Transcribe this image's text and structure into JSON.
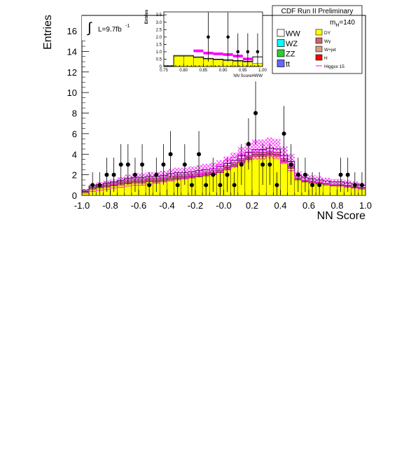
{
  "header": "CDF Run II Preliminary",
  "luminosity": "L=9.7fb",
  "luminosity_exp": "-1",
  "mass_label": "m",
  "mass_sub": "H",
  "mass_value": "=140",
  "legend_left": [
    "WW",
    "WZ",
    "ZZ",
    "tt"
  ],
  "legend_right": [
    "DY",
    "Wγ",
    "W+jet",
    "H",
    "Higgsx 15"
  ],
  "colors": {
    "WW": "#ffffff",
    "WZ": "#00ffff",
    "ZZ": "#33cc33",
    "tt": "#6666ff",
    "DY": "#ffff00",
    "Wg": "#cc6666",
    "Wjet": "#d2a080",
    "H": "#ff0000",
    "Higgsx15": "#ff00ff",
    "uncertainty": "#ff00ff",
    "data": "#000000"
  },
  "chart_data": [
    {
      "type": "bar",
      "role": "main",
      "xlabel": "NN Score",
      "ylabel": "Entries",
      "xlim": [
        -1.0,
        1.0
      ],
      "ylim": [
        0,
        17.5
      ],
      "x_ticks": [
        "-1.0",
        "-0.8",
        "-0.6",
        "-0.4",
        "-0.2",
        "-0.0",
        "0.2",
        "0.4",
        "0.6",
        "0.8",
        "1.0"
      ],
      "y_ticks": [
        "0",
        "2",
        "4",
        "6",
        "8",
        "10",
        "12",
        "14",
        "16"
      ],
      "bins": 40,
      "series": [
        {
          "name": "DY",
          "values": [
            0.3,
            0.6,
            0.7,
            0.8,
            0.9,
            1.0,
            1.1,
            1.2,
            1.2,
            1.3,
            1.3,
            1.4,
            1.5,
            1.6,
            1.6,
            1.7,
            1.8,
            1.9,
            2.0,
            2.2,
            2.5,
            2.8,
            3.2,
            3.5,
            3.8,
            3.8,
            3.9,
            3.8,
            3.2,
            2.6,
            1.5,
            1.3,
            1.2,
            1.1,
            1.0,
            0.9,
            0.9,
            0.8,
            0.7,
            0.6
          ]
        },
        {
          "name": "Wγ",
          "values": [
            0.05,
            0.1,
            0.15,
            0.15,
            0.15,
            0.2,
            0.2,
            0.2,
            0.2,
            0.2,
            0.2,
            0.2,
            0.2,
            0.2,
            0.2,
            0.2,
            0.2,
            0.2,
            0.2,
            0.2,
            0.2,
            0.2,
            0.2,
            0.2,
            0.2,
            0.2,
            0.2,
            0.2,
            0.2,
            0.2,
            0.1,
            0.1,
            0.1,
            0.1,
            0.1,
            0.1,
            0.1,
            0.1,
            0.1,
            0.1
          ]
        },
        {
          "name": "W+jet",
          "values": [
            0.05,
            0.1,
            0.1,
            0.15,
            0.15,
            0.15,
            0.2,
            0.2,
            0.2,
            0.2,
            0.2,
            0.2,
            0.2,
            0.2,
            0.2,
            0.2,
            0.2,
            0.2,
            0.2,
            0.2,
            0.2,
            0.2,
            0.2,
            0.2,
            0.2,
            0.2,
            0.2,
            0.2,
            0.2,
            0.2,
            0.1,
            0.1,
            0.1,
            0.1,
            0.1,
            0.1,
            0.1,
            0.1,
            0.1,
            0.1
          ]
        },
        {
          "name": "WW",
          "values": [
            0.1,
            0.1,
            0.1,
            0.1,
            0.1,
            0.1,
            0.15,
            0.15,
            0.15,
            0.15,
            0.15,
            0.15,
            0.2,
            0.2,
            0.2,
            0.2,
            0.2,
            0.2,
            0.2,
            0.2,
            0.2,
            0.2,
            0.25,
            0.25,
            0.25,
            0.25,
            0.3,
            0.3,
            0.3,
            0.3,
            0.2,
            0.2,
            0.2,
            0.2,
            0.2,
            0.2,
            0.2,
            0.2,
            0.2,
            0.2
          ]
        }
      ],
      "uncertainty_total": [
        0.5,
        0.9,
        1.05,
        1.2,
        1.3,
        1.45,
        1.65,
        1.75,
        1.75,
        1.85,
        1.85,
        1.95,
        2.1,
        2.2,
        2.2,
        2.3,
        2.4,
        2.5,
        2.6,
        2.8,
        3.1,
        3.4,
        3.85,
        4.15,
        4.45,
        4.45,
        4.6,
        4.5,
        3.9,
        3.3,
        1.9,
        1.7,
        1.6,
        1.5,
        1.4,
        1.3,
        1.3,
        1.2,
        1.1,
        1.0
      ],
      "uncertainty_frac": 0.22,
      "higgs_x15": [
        0.2,
        0.4,
        0.5,
        0.6,
        0.7,
        0.8,
        0.9,
        1.0,
        1.0,
        1.1,
        1.2,
        1.3,
        1.4,
        1.5,
        1.6,
        1.8,
        2.0,
        2.3,
        2.6,
        3.0,
        3.4,
        3.7,
        4.0,
        4.2,
        4.3,
        4.4,
        4.3,
        3.8,
        3.2,
        2.4,
        1.7,
        1.4,
        1.3,
        1.2,
        1.1,
        1.0,
        0.9,
        0.8,
        0.7,
        0.6
      ],
      "data_points": [
        {
          "x": -0.925,
          "y": 1
        },
        {
          "x": -0.875,
          "y": 1
        },
        {
          "x": -0.825,
          "y": 2
        },
        {
          "x": -0.775,
          "y": 2
        },
        {
          "x": -0.725,
          "y": 3
        },
        {
          "x": -0.675,
          "y": 3
        },
        {
          "x": -0.625,
          "y": 2
        },
        {
          "x": -0.575,
          "y": 3
        },
        {
          "x": -0.525,
          "y": 1
        },
        {
          "x": -0.475,
          "y": 2
        },
        {
          "x": -0.425,
          "y": 3
        },
        {
          "x": -0.375,
          "y": 4
        },
        {
          "x": -0.325,
          "y": 1
        },
        {
          "x": -0.275,
          "y": 3
        },
        {
          "x": -0.225,
          "y": 1
        },
        {
          "x": -0.175,
          "y": 4
        },
        {
          "x": -0.125,
          "y": 1
        },
        {
          "x": -0.075,
          "y": 2
        },
        {
          "x": -0.025,
          "y": 1
        },
        {
          "x": 0.025,
          "y": 2
        },
        {
          "x": 0.075,
          "y": 1
        },
        {
          "x": 0.125,
          "y": 3
        },
        {
          "x": 0.175,
          "y": 5
        },
        {
          "x": 0.225,
          "y": 8
        },
        {
          "x": 0.275,
          "y": 3
        },
        {
          "x": 0.325,
          "y": 3
        },
        {
          "x": 0.375,
          "y": 1
        },
        {
          "x": 0.425,
          "y": 6
        },
        {
          "x": 0.475,
          "y": 3
        },
        {
          "x": 0.525,
          "y": 2
        },
        {
          "x": 0.575,
          "y": 2
        },
        {
          "x": 0.625,
          "y": 1
        },
        {
          "x": 0.675,
          "y": 1
        },
        {
          "x": 0.825,
          "y": 2
        },
        {
          "x": 0.875,
          "y": 2
        },
        {
          "x": 0.925,
          "y": 1
        },
        {
          "x": 0.975,
          "y": 1
        }
      ]
    },
    {
      "type": "bar",
      "role": "inset",
      "xlabel": "NN ScoreHWW",
      "ylabel": "Entries",
      "xlim": [
        0.75,
        1.0
      ],
      "ylim": [
        0,
        3.7
      ],
      "x_ticks": [
        "0.75",
        "0.80",
        "0.85",
        "0.90",
        "0.95",
        "1.00"
      ],
      "y_ticks": [
        "0",
        "0.5",
        "1.0",
        "1.5",
        "2.0",
        "2.5",
        "3.0",
        "3.5"
      ],
      "bins": 10,
      "series": [
        {
          "name": "DY",
          "values": [
            0.05,
            0.7,
            0.7,
            0.6,
            0.5,
            0.45,
            0.4,
            0.35,
            0.3,
            0.2
          ]
        },
        {
          "name": "WW",
          "values": [
            0.0,
            0.05,
            0.05,
            0.05,
            0.05,
            0.05,
            0.05,
            0.05,
            0.05,
            0.45
          ]
        }
      ],
      "higgs_x15": [
        null,
        null,
        null,
        1.15,
        1.0,
        0.95,
        0.9,
        0.8,
        0.6,
        null
      ],
      "data_points": [
        {
          "x": 0.8625,
          "y": 2
        },
        {
          "x": 0.9125,
          "y": 2
        },
        {
          "x": 0.9375,
          "y": 1
        },
        {
          "x": 0.9625,
          "y": 1
        },
        {
          "x": 0.9875,
          "y": 1
        }
      ]
    }
  ]
}
